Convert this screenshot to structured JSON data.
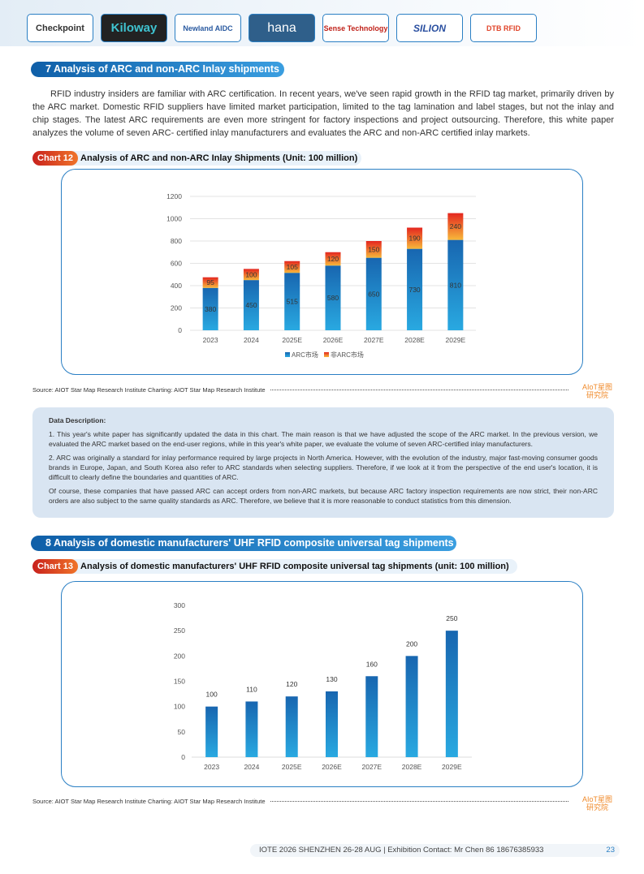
{
  "logos": [
    "Checkpoint",
    "Kiloway",
    "Newland AIDC",
    "hana",
    "Sense Technology",
    "SILION",
    "DTB RFID"
  ],
  "section7": {
    "title": "7 Analysis of ARC and non-ARC Inlay shipments",
    "paragraph": "RFID industry insiders are familiar with ARC certification. In recent years, we've seen rapid growth in the RFID tag market, primarily driven by the ARC market. Domestic RFID suppliers have limited market participation, limited to the tag lamination and label stages, but not the inlay and chip stages. The latest ARC requirements are even more stringent for factory inspections and project outsourcing. Therefore, this white paper analyzes the volume of seven ARC- certified inlay manufacturers and evaluates the ARC and non-ARC certified inlay markets."
  },
  "chart12": {
    "badge": "Chart 12",
    "title": "Analysis of ARC and non-ARC Inlay Shipments (Unit: 100 million)"
  },
  "chart13": {
    "badge": "Chart 13",
    "title": "Analysis of domestic manufacturers' UHF RFID composite universal tag shipments (unit: 100 million)"
  },
  "source": "Source: AIOT Star Map Research Institute  Charting: AIOT Star Map Research Institute",
  "brand": {
    "line1": "AIoT星图",
    "line2": "研究院"
  },
  "description": {
    "title": "Data Description:",
    "items": [
      "1. This year's white paper has significantly updated the data in this chart. The main reason is that we have adjusted the scope of the ARC market. In the previous version, we evaluated the ARC market based on the end-user regions, while in this year's white paper, we evaluate the volume of seven ARC-certified inlay manufacturers.",
      "2. ARC was originally a standard for inlay performance required by large projects in North America. However, with the evolution of the industry, major fast-moving consumer goods brands in Europe, Japan, and South Korea also refer to ARC standards when selecting suppliers. Therefore, if we look at it from the perspective of the end user's location, it is difficult to clearly define the boundaries and quantities of ARC.",
      "Of course, these companies that have passed ARC can accept orders from non-ARC markets, but because ARC factory inspection requirements are now strict, their non-ARC orders are also subject to the same quality standards as ARC. Therefore, we believe that it is more reasonable to conduct statistics from this dimension."
    ]
  },
  "section8": {
    "title": "8 Analysis of domestic manufacturers' UHF RFID composite universal tag shipments"
  },
  "footer": {
    "text": "IOTE 2026 SHENZHEN 26-28 AUG  | Exhibition Contact:  Mr Chen 86 18676385933",
    "page": "23"
  },
  "chart_data": [
    {
      "type": "bar",
      "stacked": true,
      "categories": [
        "2023",
        "2024",
        "2025E",
        "2026E",
        "2027E",
        "2028E",
        "2029E"
      ],
      "series": [
        {
          "name": "ARC市场",
          "values": [
            380,
            450,
            515,
            580,
            650,
            730,
            810
          ],
          "color": "#1e7cc4"
        },
        {
          "name": "非ARC市场",
          "values": [
            95,
            100,
            105,
            120,
            150,
            190,
            240
          ],
          "color": "#f08a2a"
        }
      ],
      "ylim": [
        0,
        1200
      ],
      "yticks": [
        0,
        200,
        400,
        600,
        800,
        1000,
        1200
      ],
      "grid": true,
      "legend": "bottom"
    },
    {
      "type": "bar",
      "categories": [
        "2023",
        "2024",
        "2025E",
        "2026E",
        "2027E",
        "2028E",
        "2029E"
      ],
      "values": [
        100,
        110,
        120,
        130,
        160,
        200,
        250
      ],
      "color": "#1e7cc4",
      "ylim": [
        0,
        300
      ],
      "yticks": [
        0,
        50,
        100,
        150,
        200,
        250,
        300
      ],
      "grid": false
    }
  ]
}
